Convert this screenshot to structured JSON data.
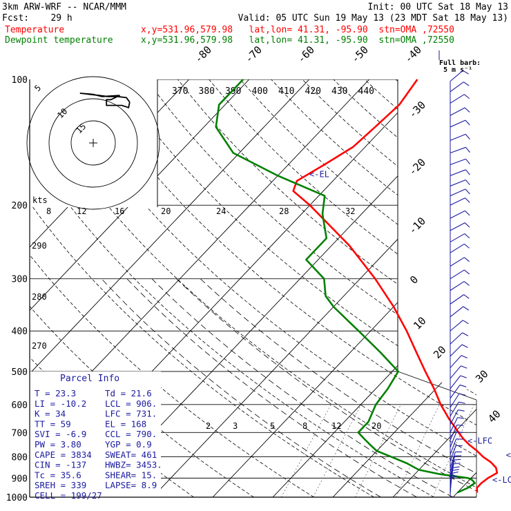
{
  "header": {
    "model": "3km ARW-WRF -- NCAR/MMM",
    "init": "Init: 00 UTC Sat 18 May 13",
    "fcst": "Fcst:    29 h",
    "valid": "Valid: 05 UTC Sun 19 May 13 (23 MDT Sat 18 May 13)",
    "temp_label": "Temperature",
    "dew_label": "Dewpoint temperature",
    "temp_loc": "x,y=531.96,579.98   lat,lon= 41.31, -95.90  stn=OMA ,72550",
    "dew_loc": "x,y=531.96,579.98   lat,lon= 41.31, -95.90  stn=OMA ,72550"
  },
  "colors": {
    "temperature": "#ff0000",
    "dewpoint": "#008000",
    "info": "#1a1aa0",
    "barbs": "#1a1aa0",
    "grid": "#000000"
  },
  "chart_data": {
    "type": "line",
    "title": "",
    "ylabel": "",
    "y_scale": "log-pressure",
    "pressure_ticks": [
      100,
      200,
      300,
      400,
      500,
      600,
      700,
      800,
      900,
      1000
    ],
    "isotherm_labels": [
      "-80",
      "-70",
      "-60",
      "-50",
      "-40",
      "-30",
      "-20",
      "-10",
      "0",
      "10",
      "20",
      "30",
      "40"
    ],
    "theta_labels": [
      "370",
      "380",
      "390",
      "400",
      "410",
      "420",
      "430",
      "440"
    ],
    "mixing_ratio_labels": [
      "2",
      "3",
      "5",
      "8",
      "12",
      "20"
    ],
    "hodograph_ring_labels": [
      "kts",
      "8",
      "12",
      "16",
      "20",
      "24",
      "28",
      "32"
    ],
    "hodograph_dir_labels": [
      "290",
      "280",
      "270"
    ],
    "barb_legend": "Full barb:",
    "barb_legend_unit": "5 m s⁻¹",
    "levels": [
      {
        "name": "<-EL",
        "p": 168
      },
      {
        "name": "<-LFC",
        "p": 731
      },
      {
        "name": "<-CCL",
        "p": 790
      },
      {
        "name": "<-LCL",
        "p": 906
      }
    ],
    "series": [
      {
        "name": "Temperature",
        "points": [
          [
            975,
            23.3
          ],
          [
            950,
            22.5
          ],
          [
            925,
            22.5
          ],
          [
            900,
            22.8
          ],
          [
            875,
            23.5
          ],
          [
            850,
            22.5
          ],
          [
            825,
            20.8
          ],
          [
            800,
            18.6
          ],
          [
            775,
            16.7
          ],
          [
            750,
            14.5
          ],
          [
            725,
            12.5
          ],
          [
            700,
            10.7
          ],
          [
            650,
            7.0
          ],
          [
            600,
            3.3
          ],
          [
            550,
            -0.3
          ],
          [
            500,
            -4.5
          ],
          [
            450,
            -9.0
          ],
          [
            400,
            -14.0
          ],
          [
            350,
            -20.0
          ],
          [
            300,
            -27.5
          ],
          [
            250,
            -37.0
          ],
          [
            200,
            -50.0
          ],
          [
            185,
            -55.0
          ],
          [
            175,
            -56.0
          ],
          [
            160,
            -54.0
          ],
          [
            145,
            -52.0
          ],
          [
            130,
            -51.5
          ],
          [
            115,
            -51.0
          ],
          [
            100,
            -52.0
          ]
        ]
      },
      {
        "name": "Dewpoint temperature",
        "points": [
          [
            975,
            20.0
          ],
          [
            950,
            21.0
          ],
          [
            925,
            21.4
          ],
          [
            910,
            20.5
          ],
          [
            900,
            19.5
          ],
          [
            880,
            14.0
          ],
          [
            860,
            10.0
          ],
          [
            830,
            7.0
          ],
          [
            800,
            3.3
          ],
          [
            775,
            0.0
          ],
          [
            750,
            -2.0
          ],
          [
            725,
            -4.0
          ],
          [
            700,
            -6.0
          ],
          [
            660,
            -6.0
          ],
          [
            600,
            -7.5
          ],
          [
            550,
            -8.0
          ],
          [
            500,
            -9.0
          ],
          [
            450,
            -15.0
          ],
          [
            400,
            -22.0
          ],
          [
            350,
            -30.0
          ],
          [
            330,
            -33.0
          ],
          [
            300,
            -36.0
          ],
          [
            270,
            -42.0
          ],
          [
            240,
            -42.0
          ],
          [
            210,
            -46.5
          ],
          [
            190,
            -49.0
          ],
          [
            170,
            -60.0
          ],
          [
            150,
            -71.0
          ],
          [
            130,
            -78.0
          ],
          [
            115,
            -81.0
          ],
          [
            100,
            -81.0
          ]
        ]
      }
    ],
    "hodograph": [
      [
        16.5,
        -18.5
      ],
      [
        15,
        -20.5
      ],
      [
        11,
        -21
      ],
      [
        6.5,
        -21
      ],
      [
        2.7,
        -21.5
      ],
      [
        -6,
        -22.5
      ],
      [
        0,
        -22
      ],
      [
        4,
        -21
      ],
      [
        12,
        -21.5
      ],
      [
        8,
        -19.6
      ],
      [
        6,
        -19.6
      ],
      [
        6,
        -17
      ],
      [
        13,
        -17
      ],
      [
        16,
        -16
      ],
      [
        16.5,
        -18.5
      ]
    ]
  },
  "parcel_info": {
    "title": "Parcel Info",
    "rows": [
      [
        "T  =     23.3",
        "Td =    21.6"
      ],
      [
        "LI =    -10.2",
        "LCL =   906."
      ],
      [
        "K  =       34",
        "LFC =   731."
      ],
      [
        "TT =       59",
        "EL  =    168"
      ],
      [
        "SVI =    -6.9",
        "CCL =   790."
      ],
      [
        "PW =     3.80",
        "YGP =    0.9"
      ],
      [
        "CAPE =   3834",
        "SWEAT=   461"
      ],
      [
        "CIN =    -137",
        "HWBZ= 3453."
      ],
      [
        "Tc =     35.6",
        "SHEAR=   15."
      ],
      [
        "SREH =    339",
        "LAPSE=   8.9"
      ],
      [
        "CELL = 199/27",
        ""
      ]
    ]
  },
  "wind_profile": [
    [
      985,
      3,
      8
    ],
    [
      975,
      5,
      7
    ],
    [
      960,
      6,
      8
    ],
    [
      945,
      8,
      8
    ],
    [
      930,
      10,
      9
    ],
    [
      910,
      12,
      9
    ],
    [
      890,
      14,
      10
    ],
    [
      870,
      16,
      10
    ],
    [
      850,
      18,
      11
    ],
    [
      820,
      20,
      10
    ],
    [
      790,
      21,
      10
    ],
    [
      760,
      22,
      9
    ],
    [
      730,
      24,
      9
    ],
    [
      700,
      26,
      9
    ],
    [
      670,
      28,
      9
    ],
    [
      640,
      31,
      10
    ],
    [
      610,
      33,
      11
    ],
    [
      580,
      36,
      12
    ],
    [
      550,
      38,
      12
    ],
    [
      520,
      40,
      12
    ],
    [
      490,
      42,
      12
    ],
    [
      460,
      45,
      12
    ],
    [
      430,
      47,
      12
    ],
    [
      400,
      50,
      12
    ],
    [
      370,
      52,
      12
    ],
    [
      345,
      55,
      12
    ],
    [
      320,
      57,
      12
    ],
    [
      300,
      58,
      12
    ],
    [
      280,
      58,
      12
    ],
    [
      260,
      58,
      12
    ],
    [
      245,
      60,
      12
    ],
    [
      230,
      62,
      12
    ],
    [
      215,
      63,
      12
    ],
    [
      200,
      64,
      12
    ],
    [
      190,
      66,
      12
    ],
    [
      180,
      68,
      12
    ],
    [
      170,
      69,
      12
    ],
    [
      160,
      70,
      12
    ],
    [
      150,
      70,
      12
    ],
    [
      140,
      68,
      12
    ],
    [
      130,
      66,
      12
    ],
    [
      122,
      62,
      12
    ],
    [
      114,
      58,
      12
    ],
    [
      107,
      54,
      12
    ],
    [
      101,
      50,
      12
    ]
  ]
}
